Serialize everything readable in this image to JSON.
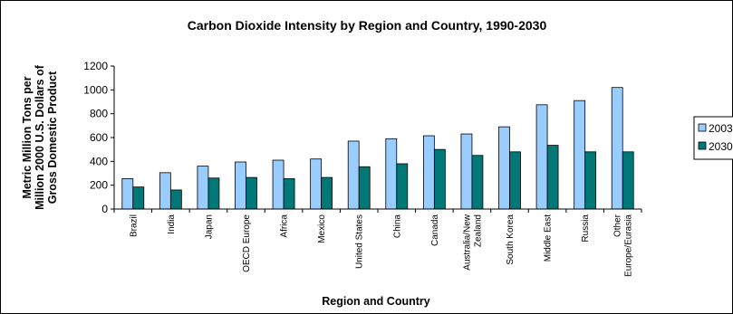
{
  "chart_data": {
    "type": "bar",
    "title": "Carbon Dioxide Intensity by Region and Country, 1990-2030",
    "xlabel": "Region and Country",
    "ylabel_lines": [
      "Metric Million Tons per",
      "Million 2000 U.S. Dollars of",
      "Gross Domestic Product"
    ],
    "ylim": [
      0,
      1200
    ],
    "yticks": [
      0,
      200,
      400,
      600,
      800,
      1000,
      1200
    ],
    "grid": false,
    "legend_position": "right",
    "categories": [
      [
        "Brazil"
      ],
      [
        "India"
      ],
      [
        "Japan"
      ],
      [
        "OECD Europe"
      ],
      [
        "Africa"
      ],
      [
        "Mexico"
      ],
      [
        "United States"
      ],
      [
        "China"
      ],
      [
        "Canada"
      ],
      [
        "Australia/New",
        "Zealand"
      ],
      [
        "South Korea"
      ],
      [
        "Middle East"
      ],
      [
        "Russia"
      ],
      [
        "Other",
        "Europe/Eurasia"
      ]
    ],
    "series": [
      {
        "name": "2003",
        "color": "#99ccff",
        "values": [
          255,
          305,
          360,
          395,
          410,
          420,
          570,
          590,
          615,
          630,
          690,
          875,
          910,
          1020
        ]
      },
      {
        "name": "2030",
        "color": "#007878",
        "values": [
          185,
          160,
          260,
          265,
          255,
          265,
          355,
          380,
          500,
          450,
          480,
          535,
          480,
          480
        ]
      }
    ]
  }
}
